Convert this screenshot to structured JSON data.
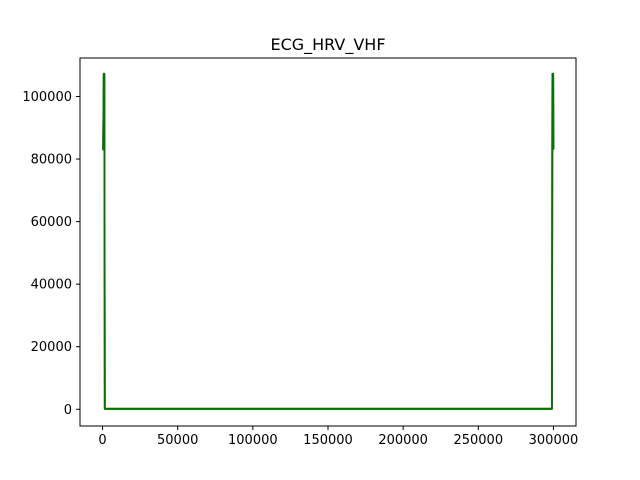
{
  "chart_data": {
    "type": "line",
    "title": "ECG_HRV_VHF",
    "xlabel": "",
    "ylabel": "",
    "xlim": [
      -15000,
      315000
    ],
    "ylim": [
      -5350,
      112300
    ],
    "x_ticks": [
      0,
      50000,
      100000,
      150000,
      200000,
      250000,
      300000
    ],
    "x_tick_labels": [
      "0",
      "50000",
      "100000",
      "150000",
      "200000",
      "250000",
      "300000"
    ],
    "y_ticks": [
      0,
      20000,
      40000,
      60000,
      80000,
      100000
    ],
    "y_tick_labels": [
      "0",
      "20000",
      "40000",
      "60000",
      "80000",
      "100000"
    ],
    "grid": false,
    "series": [
      {
        "color": "#1f77b4",
        "points": [
          [
            0,
            83000
          ],
          [
            400,
            83000
          ],
          [
            800,
            107000
          ],
          [
            1200,
            107000
          ],
          [
            1500,
            200
          ],
          [
            299000,
            200
          ],
          [
            299300,
            107000
          ],
          [
            299800,
            107000
          ],
          [
            300000,
            83000
          ]
        ]
      },
      {
        "color": "#ff7f0e",
        "points": [
          [
            0,
            83200
          ],
          [
            400,
            83200
          ],
          [
            800,
            107200
          ],
          [
            1200,
            107200
          ],
          [
            1500,
            250
          ],
          [
            299000,
            250
          ],
          [
            299300,
            107200
          ],
          [
            299800,
            107200
          ],
          [
            300000,
            83200
          ]
        ]
      },
      {
        "color": "#2ca02c",
        "points": [
          [
            0,
            83100
          ],
          [
            400,
            83100
          ],
          [
            800,
            107100
          ],
          [
            1200,
            107100
          ],
          [
            1500,
            150
          ],
          [
            299000,
            150
          ],
          [
            299300,
            107100
          ],
          [
            299800,
            107100
          ],
          [
            300000,
            83100
          ]
        ]
      },
      {
        "color": "#d4c400",
        "points": [
          [
            1000,
            96000
          ],
          [
            1200,
            96000
          ]
        ]
      },
      {
        "color": "#0a6e0a",
        "points": [
          [
            0,
            83000
          ],
          [
            400,
            83000
          ],
          [
            800,
            107300
          ],
          [
            1200,
            107300
          ],
          [
            1500,
            100
          ],
          [
            299000,
            100
          ],
          [
            299300,
            107300
          ],
          [
            299800,
            107300
          ],
          [
            300000,
            83000
          ]
        ]
      }
    ]
  }
}
